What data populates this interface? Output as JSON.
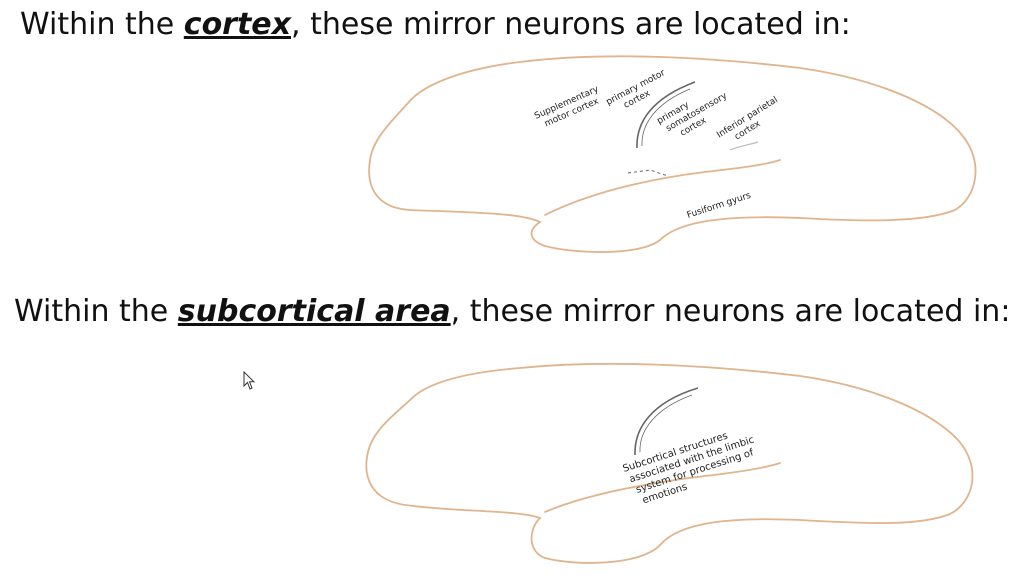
{
  "heading1": {
    "pre": "Within the ",
    "em": "cortex",
    "post": ", these mirror neurons are located in:"
  },
  "heading2": {
    "pre": "Within the ",
    "em": "subcortical area",
    "post": ", these mirror neurons are located in:"
  },
  "cortex_labels": {
    "supplementary": [
      "Supplementary",
      "motor cortex"
    ],
    "primary_motor": [
      "primary motor",
      "cortex"
    ],
    "somatosensory": [
      "primary",
      "somatosensory",
      "cortex"
    ],
    "inferior_parietal": [
      "Inferior parietal",
      "cortex"
    ],
    "fusiform": "Fusiform gyurs"
  },
  "subcortical_label": [
    "Subcortical structures",
    "associated with the limbic",
    "system for processing of",
    "emotions"
  ],
  "colors": {
    "outline": "#e0b48c",
    "sulcus": "#666666"
  }
}
